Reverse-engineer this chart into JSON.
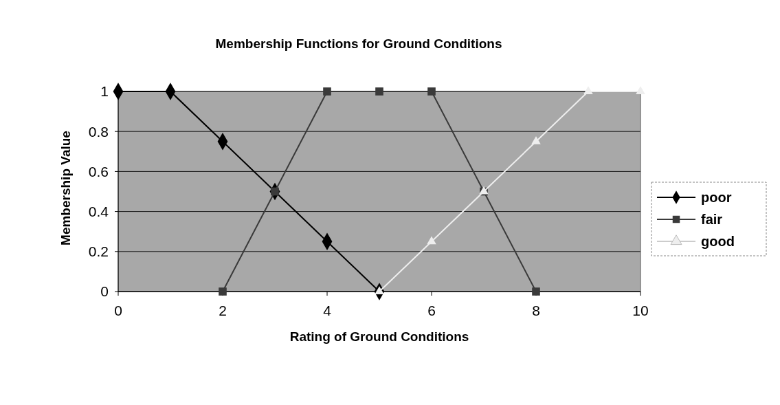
{
  "chart_data": {
    "type": "line",
    "title": "Membership Functions for Ground Conditions",
    "xlabel": "Rating of Ground Conditions",
    "ylabel": "Membership Value",
    "xlim": [
      0,
      10
    ],
    "xticks": [
      0,
      2,
      4,
      6,
      8,
      10
    ],
    "ylim": [
      0,
      1
    ],
    "yticks": [
      0,
      0.2,
      0.4,
      0.6,
      0.8,
      1
    ],
    "grid": "y",
    "legend": "right",
    "series": [
      {
        "name": "poor",
        "color": "#000000",
        "marker": "diamond",
        "x": [
          0,
          1,
          2,
          3,
          4,
          5
        ],
        "values": [
          1,
          1,
          0.75,
          0.5,
          0.25,
          0
        ]
      },
      {
        "name": "fair",
        "color": "#3a3a3a",
        "marker": "square",
        "x": [
          2,
          3,
          4,
          5,
          6,
          7,
          8
        ],
        "values": [
          0,
          0.5,
          1,
          1,
          1,
          0.5,
          0
        ]
      },
      {
        "name": "good",
        "color": "#eeeeee",
        "marker": "triangle",
        "x": [
          5,
          6,
          7,
          8,
          9,
          10
        ],
        "values": [
          0,
          0.25,
          0.5,
          0.75,
          1,
          1
        ]
      }
    ]
  }
}
